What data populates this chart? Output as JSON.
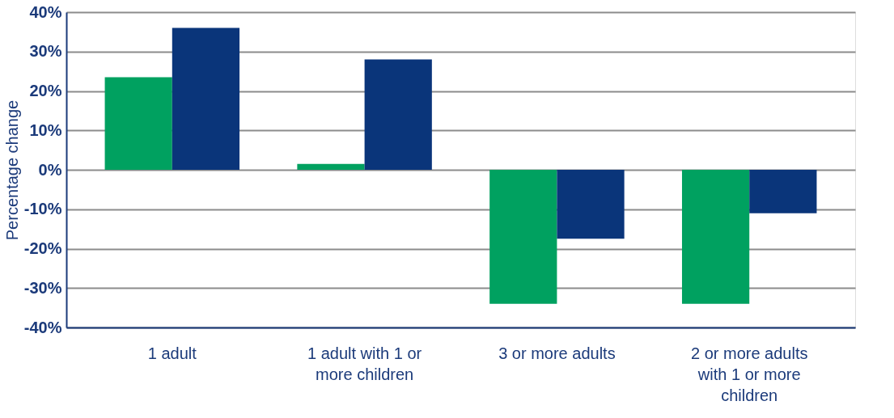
{
  "chart_data": {
    "type": "bar",
    "ylabel": "Percentage change",
    "categories": [
      "1 adult",
      "1 adult with 1 or more children",
      "3 or more adults",
      "2 or more adults with 1 or more children"
    ],
    "series": [
      {
        "color": "#00a160",
        "values": [
          23.5,
          1.5,
          -34,
          -34
        ]
      },
      {
        "color": "#0a357a",
        "values": [
          36,
          28,
          -17.5,
          -11
        ]
      }
    ],
    "ylim": [
      -40,
      40
    ],
    "yticks": [
      {
        "value": -40,
        "label": "-40%"
      },
      {
        "value": -30,
        "label": "-30%"
      },
      {
        "value": -20,
        "label": "-20%"
      },
      {
        "value": -10,
        "label": "-10%"
      },
      {
        "value": 0,
        "label": "0%"
      },
      {
        "value": 10,
        "label": "10%"
      },
      {
        "value": 20,
        "label": "20%"
      },
      {
        "value": 30,
        "label": "30%"
      },
      {
        "value": 40,
        "label": "40%"
      }
    ],
    "grid": "y",
    "legend": false
  }
}
